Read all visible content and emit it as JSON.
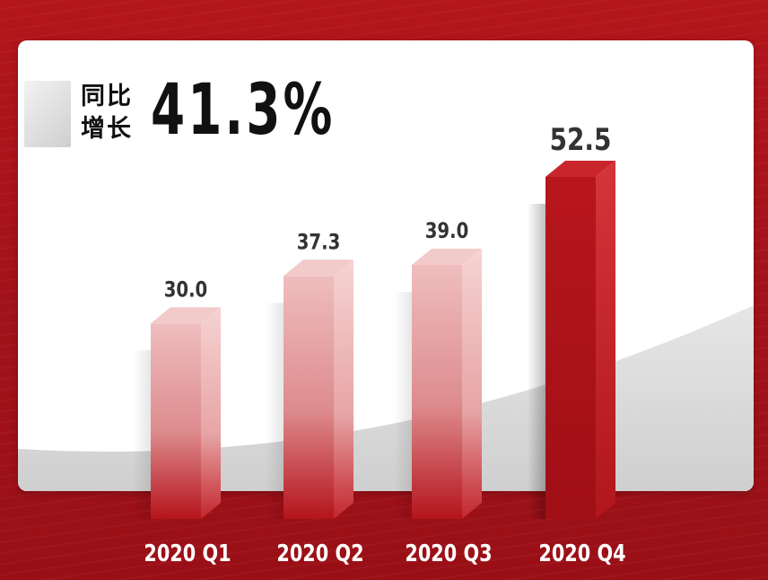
{
  "headline": {
    "label_line1": "同比",
    "label_line2": "增长",
    "value": "41.3%"
  },
  "chart_data": {
    "type": "bar",
    "categories": [
      "2020  Q1",
      "2020  Q2",
      "2020  Q3",
      "2020  Q4"
    ],
    "values": [
      30.0,
      37.3,
      39.0,
      52.5
    ],
    "value_labels": [
      "30.0",
      "37.3",
      "39.0",
      "52.5"
    ],
    "highlight_index": 3,
    "title": "",
    "xlabel": "",
    "ylabel": "",
    "grid": false,
    "colors": {
      "bar": "#e9a7a8",
      "bar_highlight": "#b5141c",
      "background": "#a8131a",
      "card": "#ffffff",
      "label": "#333333",
      "tick": "#ffffff"
    }
  }
}
